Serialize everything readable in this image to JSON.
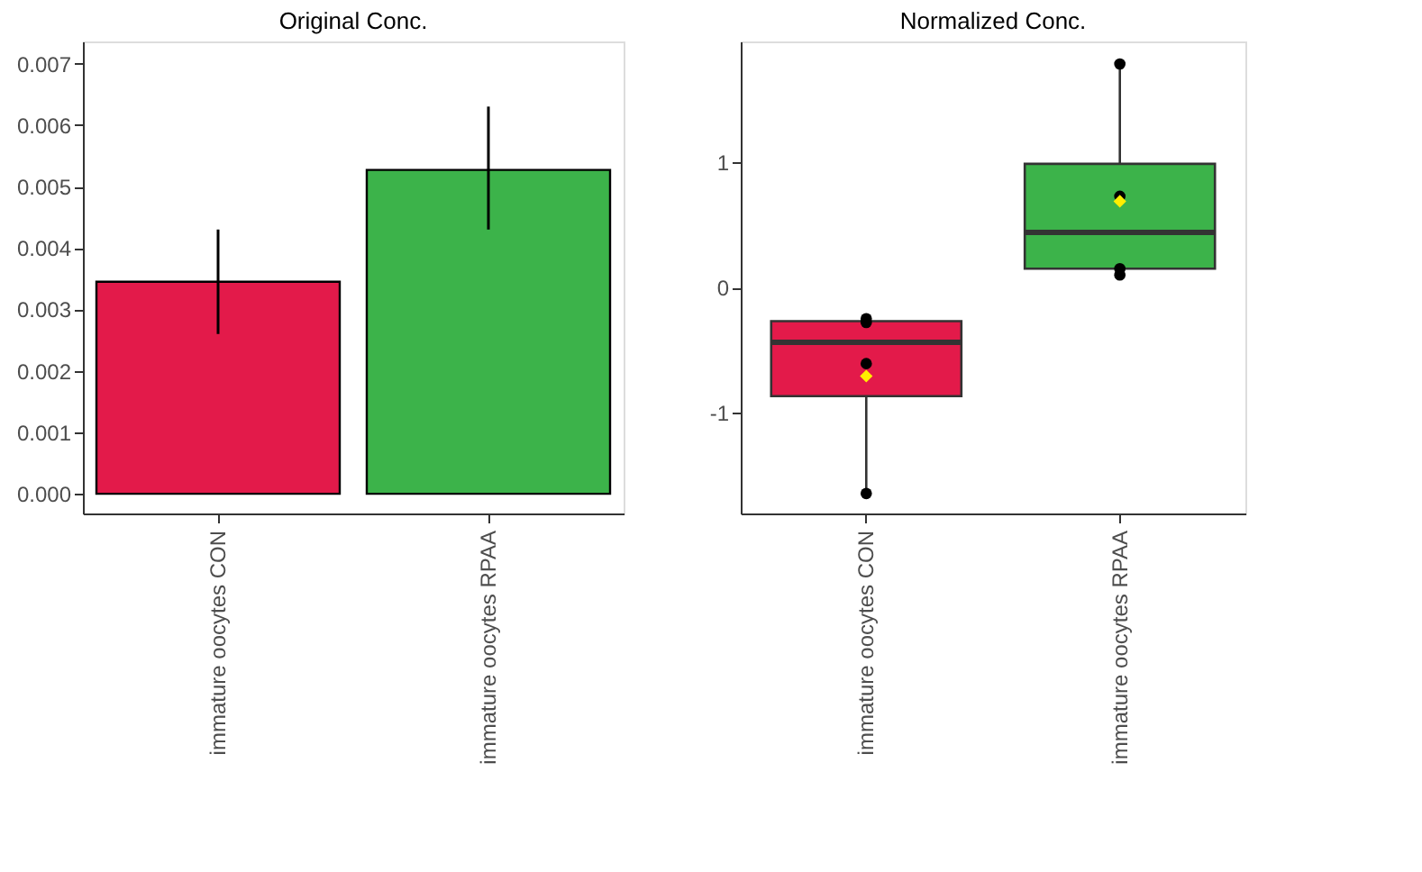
{
  "chart_data": [
    {
      "type": "bar",
      "title": "Original Conc.",
      "categories": [
        "immature oocytes CON",
        "immature oocytes RPAA"
      ],
      "values": [
        0.00345,
        0.00527
      ],
      "colors": [
        "#e31a4a",
        "#3cb34a"
      ],
      "errors": [
        [
          0.0026,
          0.0043
        ],
        [
          0.0043,
          0.0063
        ]
      ],
      "ylim": [
        -0.00032,
        0.00736
      ],
      "yticks": [
        {
          "value": 0,
          "label": "0.000"
        },
        0.001,
        0.002,
        0.003,
        0.004,
        0.005,
        0.006,
        0.007
      ],
      "grid": false,
      "legend": false
    },
    {
      "type": "box",
      "title": "Normalized Conc.",
      "categories": [
        "immature oocytes CON",
        "immature oocytes RPAA"
      ],
      "colors": [
        "#e31a4a",
        "#3cb34a"
      ],
      "boxes": [
        {
          "low": -1.65,
          "q1": -0.87,
          "median": -0.44,
          "q3": -0.27,
          "high": -0.27,
          "mean": -0.71
        },
        {
          "low": 0.11,
          "q1": 0.15,
          "median": 0.44,
          "q3": 0.99,
          "high": 1.79,
          "mean": 0.69
        }
      ],
      "series": [
        {
          "type": "scatter",
          "color": "#000000",
          "x": [
            "immature oocytes CON",
            "immature oocytes CON",
            "immature oocytes CON",
            "immature oocytes CON",
            "immature oocytes RPAA",
            "immature oocytes RPAA",
            "immature oocytes RPAA",
            "immature oocytes RPAA"
          ],
          "values": [
            -0.25,
            -0.28,
            -0.61,
            -1.65,
            1.79,
            0.73,
            0.15,
            0.1
          ]
        }
      ],
      "ylim": [
        -1.81,
        1.97
      ],
      "yticks": [
        -1,
        0,
        1
      ],
      "grid": false,
      "legend": false
    }
  ]
}
